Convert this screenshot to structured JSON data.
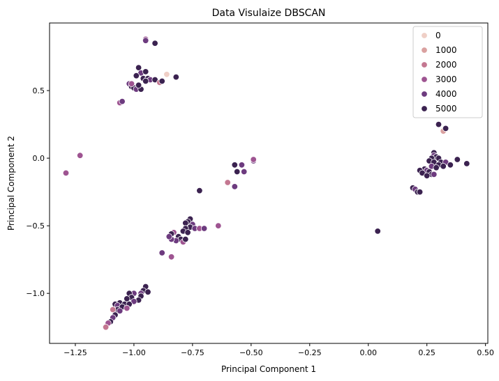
{
  "chart_data": {
    "type": "scatter",
    "title": "Data Visulaize DBSCAN",
    "xlabel": "Principal Component 1",
    "ylabel": "Principal Component 2",
    "xlim": [
      -1.36,
      0.51
    ],
    "ylim": [
      -1.37,
      1.0
    ],
    "xticks": [
      -1.25,
      -1.0,
      -0.75,
      -0.5,
      -0.25,
      0.0,
      0.25,
      0.5
    ],
    "xtick_labels": [
      "−1.25",
      "−1.00",
      "−0.75",
      "−0.50",
      "−0.25",
      "0.00",
      "0.25",
      "0.50"
    ],
    "yticks": [
      0.5,
      0.0,
      -0.5,
      -1.0
    ],
    "ytick_labels": [
      "0.5",
      "0.0",
      "−0.5",
      "−1.0"
    ],
    "grid": false,
    "legend_position": "top-right",
    "legend": [
      {
        "label": "0",
        "color": "#efcfc6"
      },
      {
        "label": "1000",
        "color": "#daa1a0"
      },
      {
        "label": "2000",
        "color": "#c47791"
      },
      {
        "label": "3000",
        "color": "#9e5491"
      },
      {
        "label": "4000",
        "color": "#6d3b7f"
      },
      {
        "label": "5000",
        "color": "#3b2250"
      }
    ],
    "points": [
      {
        "x": -0.95,
        "y": 0.88,
        "v": 3000
      },
      {
        "x": -0.95,
        "y": 0.87,
        "v": 4000
      },
      {
        "x": -0.91,
        "y": 0.85,
        "v": 5000
      },
      {
        "x": -0.86,
        "y": 0.62,
        "v": 0
      },
      {
        "x": -0.82,
        "y": 0.6,
        "v": 5000
      },
      {
        "x": -0.98,
        "y": 0.67,
        "v": 5000
      },
      {
        "x": -0.97,
        "y": 0.63,
        "v": 4000
      },
      {
        "x": -0.95,
        "y": 0.64,
        "v": 5000
      },
      {
        "x": -0.99,
        "y": 0.61,
        "v": 5000
      },
      {
        "x": -0.96,
        "y": 0.59,
        "v": 5000
      },
      {
        "x": -0.94,
        "y": 0.59,
        "v": 5000
      },
      {
        "x": -0.93,
        "y": 0.58,
        "v": 4000
      },
      {
        "x": -0.91,
        "y": 0.58,
        "v": 5000
      },
      {
        "x": -0.89,
        "y": 0.56,
        "v": 2000
      },
      {
        "x": -0.88,
        "y": 0.57,
        "v": 5000
      },
      {
        "x": -0.95,
        "y": 0.57,
        "v": 5000
      },
      {
        "x": -1.02,
        "y": 0.55,
        "v": 4000
      },
      {
        "x": -1.01,
        "y": 0.53,
        "v": 5000
      },
      {
        "x": -1.0,
        "y": 0.52,
        "v": 5000
      },
      {
        "x": -0.99,
        "y": 0.51,
        "v": 4000
      },
      {
        "x": -0.97,
        "y": 0.51,
        "v": 5000
      },
      {
        "x": -1.01,
        "y": 0.55,
        "v": 3000
      },
      {
        "x": -0.98,
        "y": 0.54,
        "v": 5000
      },
      {
        "x": -1.06,
        "y": 0.41,
        "v": 3000
      },
      {
        "x": -1.05,
        "y": 0.42,
        "v": 4000
      },
      {
        "x": -1.23,
        "y": 0.02,
        "v": 3000
      },
      {
        "x": -1.29,
        "y": -0.11,
        "v": 3000
      },
      {
        "x": -0.57,
        "y": -0.05,
        "v": 5000
      },
      {
        "x": -0.54,
        "y": -0.05,
        "v": 4000
      },
      {
        "x": -0.49,
        "y": -0.02,
        "v": 4000
      },
      {
        "x": -0.49,
        "y": -0.01,
        "v": 3000
      },
      {
        "x": -0.56,
        "y": -0.1,
        "v": 5000
      },
      {
        "x": -0.53,
        "y": -0.1,
        "v": 4000
      },
      {
        "x": -0.6,
        "y": -0.18,
        "v": 2000
      },
      {
        "x": -0.57,
        "y": -0.21,
        "v": 4000
      },
      {
        "x": -0.72,
        "y": -0.24,
        "v": 5000
      },
      {
        "x": -0.76,
        "y": -0.45,
        "v": 5000
      },
      {
        "x": -0.77,
        "y": -0.47,
        "v": 5000
      },
      {
        "x": -0.78,
        "y": -0.48,
        "v": 5000
      },
      {
        "x": -0.75,
        "y": -0.49,
        "v": 4000
      },
      {
        "x": -0.76,
        "y": -0.51,
        "v": 5000
      },
      {
        "x": -0.74,
        "y": -0.52,
        "v": 4000
      },
      {
        "x": -0.72,
        "y": -0.52,
        "v": 3000
      },
      {
        "x": -0.7,
        "y": -0.52,
        "v": 4000
      },
      {
        "x": -0.78,
        "y": -0.52,
        "v": 5000
      },
      {
        "x": -0.79,
        "y": -0.54,
        "v": 5000
      },
      {
        "x": -0.77,
        "y": -0.55,
        "v": 5000
      },
      {
        "x": -0.83,
        "y": -0.55,
        "v": 3000
      },
      {
        "x": -0.84,
        "y": -0.56,
        "v": 5000
      },
      {
        "x": -0.81,
        "y": -0.58,
        "v": 5000
      },
      {
        "x": -0.8,
        "y": -0.6,
        "v": 5000
      },
      {
        "x": -0.82,
        "y": -0.61,
        "v": 4000
      },
      {
        "x": -0.84,
        "y": -0.6,
        "v": 4000
      },
      {
        "x": -0.79,
        "y": -0.62,
        "v": 3000
      },
      {
        "x": -0.78,
        "y": -0.6,
        "v": 5000
      },
      {
        "x": -0.85,
        "y": -0.58,
        "v": 4000
      },
      {
        "x": -0.64,
        "y": -0.5,
        "v": 3000
      },
      {
        "x": -0.88,
        "y": -0.7,
        "v": 4000
      },
      {
        "x": -0.84,
        "y": -0.73,
        "v": 3000
      },
      {
        "x": -0.95,
        "y": -0.95,
        "v": 5000
      },
      {
        "x": -0.96,
        "y": -0.98,
        "v": 5000
      },
      {
        "x": -0.94,
        "y": -0.99,
        "v": 5000
      },
      {
        "x": -0.97,
        "y": -1.0,
        "v": 4000
      },
      {
        "x": -1.0,
        "y": -1.0,
        "v": 4000
      },
      {
        "x": -1.02,
        "y": -1.0,
        "v": 5000
      },
      {
        "x": -0.97,
        "y": -1.02,
        "v": 5000
      },
      {
        "x": -0.98,
        "y": -1.05,
        "v": 5000
      },
      {
        "x": -1.01,
        "y": -1.03,
        "v": 5000
      },
      {
        "x": -1.03,
        "y": -1.04,
        "v": 5000
      },
      {
        "x": -1.0,
        "y": -1.06,
        "v": 4000
      },
      {
        "x": -1.06,
        "y": -1.07,
        "v": 5000
      },
      {
        "x": -1.04,
        "y": -1.08,
        "v": 5000
      },
      {
        "x": -1.02,
        "y": -1.08,
        "v": 5000
      },
      {
        "x": -1.08,
        "y": -1.08,
        "v": 5000
      },
      {
        "x": -1.07,
        "y": -1.09,
        "v": 4000
      },
      {
        "x": -1.05,
        "y": -1.1,
        "v": 5000
      },
      {
        "x": -1.07,
        "y": -1.12,
        "v": 5000
      },
      {
        "x": -1.09,
        "y": -1.12,
        "v": 2000
      },
      {
        "x": -1.06,
        "y": -1.13,
        "v": 4000
      },
      {
        "x": -1.03,
        "y": -1.11,
        "v": 3000
      },
      {
        "x": -1.08,
        "y": -1.16,
        "v": 5000
      },
      {
        "x": -1.09,
        "y": -1.18,
        "v": 4000
      },
      {
        "x": -1.1,
        "y": -1.21,
        "v": 5000
      },
      {
        "x": -1.11,
        "y": -1.22,
        "v": 3000
      },
      {
        "x": -1.12,
        "y": -1.25,
        "v": 2000
      },
      {
        "x": 0.3,
        "y": 0.25,
        "v": 5000
      },
      {
        "x": 0.32,
        "y": 0.2,
        "v": 1000
      },
      {
        "x": 0.33,
        "y": 0.22,
        "v": 5000
      },
      {
        "x": 0.28,
        "y": 0.04,
        "v": 5000
      },
      {
        "x": 0.28,
        "y": 0.02,
        "v": 4000
      },
      {
        "x": 0.29,
        "y": 0.01,
        "v": 5000
      },
      {
        "x": 0.27,
        "y": 0.0,
        "v": 5000
      },
      {
        "x": 0.3,
        "y": 0.0,
        "v": 5000
      },
      {
        "x": 0.26,
        "y": -0.02,
        "v": 5000
      },
      {
        "x": 0.28,
        "y": -0.03,
        "v": 5000
      },
      {
        "x": 0.31,
        "y": -0.03,
        "v": 5000
      },
      {
        "x": 0.33,
        "y": -0.03,
        "v": 4000
      },
      {
        "x": 0.3,
        "y": -0.05,
        "v": 5000
      },
      {
        "x": 0.35,
        "y": -0.05,
        "v": 5000
      },
      {
        "x": 0.27,
        "y": -0.06,
        "v": 4000
      },
      {
        "x": 0.32,
        "y": -0.06,
        "v": 5000
      },
      {
        "x": 0.29,
        "y": -0.07,
        "v": 5000
      },
      {
        "x": 0.24,
        "y": -0.08,
        "v": 5000
      },
      {
        "x": 0.25,
        "y": -0.09,
        "v": 4000
      },
      {
        "x": 0.22,
        "y": -0.09,
        "v": 5000
      },
      {
        "x": 0.26,
        "y": -0.1,
        "v": 5000
      },
      {
        "x": 0.23,
        "y": -0.11,
        "v": 5000
      },
      {
        "x": 0.27,
        "y": -0.12,
        "v": 5000
      },
      {
        "x": 0.28,
        "y": -0.12,
        "v": 4000
      },
      {
        "x": 0.25,
        "y": -0.13,
        "v": 5000
      },
      {
        "x": 0.38,
        "y": -0.01,
        "v": 5000
      },
      {
        "x": 0.42,
        "y": -0.04,
        "v": 5000
      },
      {
        "x": 0.19,
        "y": -0.22,
        "v": 5000
      },
      {
        "x": 0.2,
        "y": -0.23,
        "v": 4000
      },
      {
        "x": 0.21,
        "y": -0.25,
        "v": 5000
      },
      {
        "x": 0.22,
        "y": -0.25,
        "v": 5000
      },
      {
        "x": 0.04,
        "y": -0.54,
        "v": 5000
      }
    ]
  }
}
